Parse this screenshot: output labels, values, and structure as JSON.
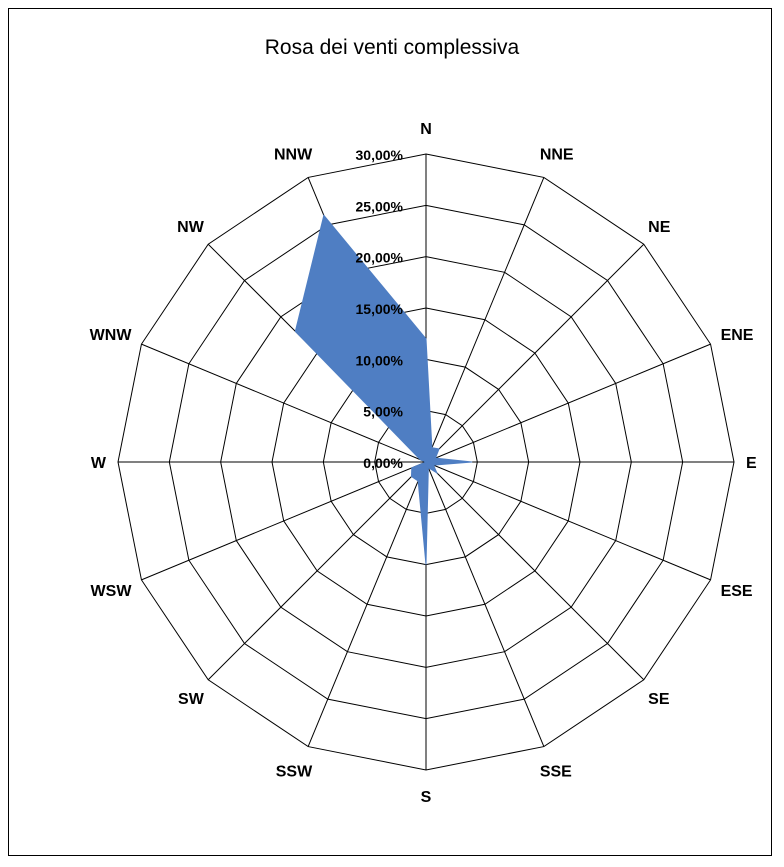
{
  "chart_data": {
    "type": "radar",
    "title": "Rosa dei venti complessiva",
    "categories": [
      "N",
      "NNE",
      "NE",
      "ENE",
      "E",
      "ESE",
      "SE",
      "SSE",
      "S",
      "SSW",
      "SW",
      "WSW",
      "W",
      "WNW",
      "NW",
      "NNW"
    ],
    "values": [
      12.0,
      1.5,
      1.8,
      1.0,
      4.5,
      0.8,
      1.5,
      0.6,
      10.0,
      2.0,
      2.0,
      1.5,
      0.0,
      0.6,
      18.0,
      26.0
    ],
    "rlim": [
      0,
      30
    ],
    "ticks": [
      "0,00%",
      "5,00%",
      "10,00%",
      "15,00%",
      "20,00%",
      "25,00%",
      "30,00%"
    ],
    "tick_values": [
      0,
      5,
      10,
      15,
      20,
      25,
      30
    ],
    "series_color": "#4f7ec3",
    "grid": true,
    "legend": "none"
  }
}
